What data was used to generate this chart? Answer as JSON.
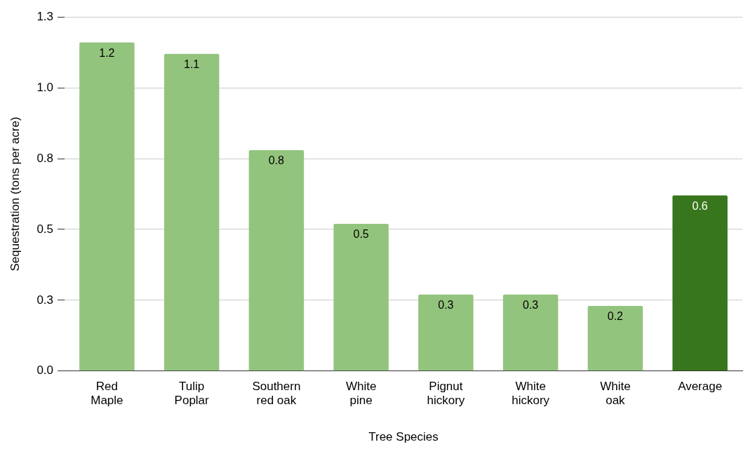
{
  "chart_data": {
    "type": "bar",
    "xlabel": "Tree Species",
    "ylabel": "Sequestration (tons per acre)",
    "categories": [
      "Red Maple",
      "Tulip Poplar",
      "Southern red oak",
      "White pine",
      "Pignut hickory",
      "White hickory",
      "White oak",
      "Average"
    ],
    "values": [
      1.16,
      1.12,
      0.78,
      0.52,
      0.27,
      0.27,
      0.23,
      0.62
    ],
    "colors": [
      "#93c47d",
      "#93c47d",
      "#93c47d",
      "#93c47d",
      "#93c47d",
      "#93c47d",
      "#93c47d",
      "#38761d"
    ],
    "value_labels": [
      "1.2",
      "1.1",
      "0.8",
      "0.5",
      "0.3",
      "0.3",
      "0.2",
      "0.6"
    ],
    "ylim": [
      0,
      1.25
    ],
    "yticks": [
      {
        "value": 0,
        "label": "0.0"
      },
      {
        "value": 0.25,
        "label": "0.3"
      },
      0.5,
      {
        "value": 0.75,
        "label": "0.8"
      },
      {
        "value": 1,
        "label": "1.0"
      },
      {
        "value": 1.25,
        "label": "1.3"
      }
    ],
    "grid": "y",
    "legend": false
  }
}
